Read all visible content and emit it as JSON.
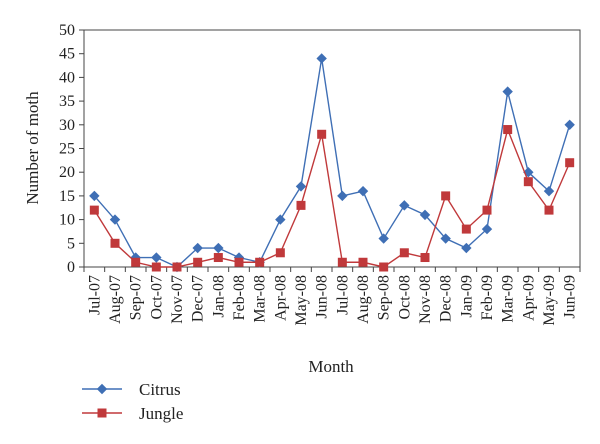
{
  "chart_data": {
    "type": "line",
    "title": "",
    "xlabel": "Month",
    "ylabel": "Number of moth",
    "ylim": [
      0,
      50
    ],
    "yticks": [
      0,
      5,
      10,
      15,
      20,
      25,
      30,
      35,
      40,
      45,
      50
    ],
    "grid": false,
    "legend_position": "bottom-left",
    "categories": [
      "Jul-07",
      "Aug-07",
      "Sep-07",
      "Oct-07",
      "Nov-07",
      "Dec-07",
      "Jan-08",
      "Feb-08",
      "Mar-08",
      "Apr-08",
      "May-08",
      "Jun-08",
      "Jul-08",
      "Aug-08",
      "Sep-08",
      "Oct-08",
      "Nov-08",
      "Dec-08",
      "Jan-09",
      "Feb-09",
      "Mar-09",
      "Apr-09",
      "May-09",
      "Jun-09"
    ],
    "series": [
      {
        "name": "Citrus",
        "color": "#3f6fb5",
        "marker": "diamond",
        "values": [
          15,
          10,
          2,
          2,
          0,
          4,
          4,
          2,
          1,
          10,
          17,
          44,
          15,
          16,
          6,
          13,
          11,
          6,
          4,
          8,
          37,
          20,
          16,
          30
        ]
      },
      {
        "name": "Jungle",
        "color": "#c0393b",
        "marker": "square",
        "values": [
          12,
          5,
          1,
          0,
          0,
          1,
          2,
          1,
          1,
          3,
          13,
          28,
          1,
          1,
          0,
          3,
          2,
          15,
          8,
          12,
          29,
          18,
          12,
          22
        ]
      }
    ]
  }
}
